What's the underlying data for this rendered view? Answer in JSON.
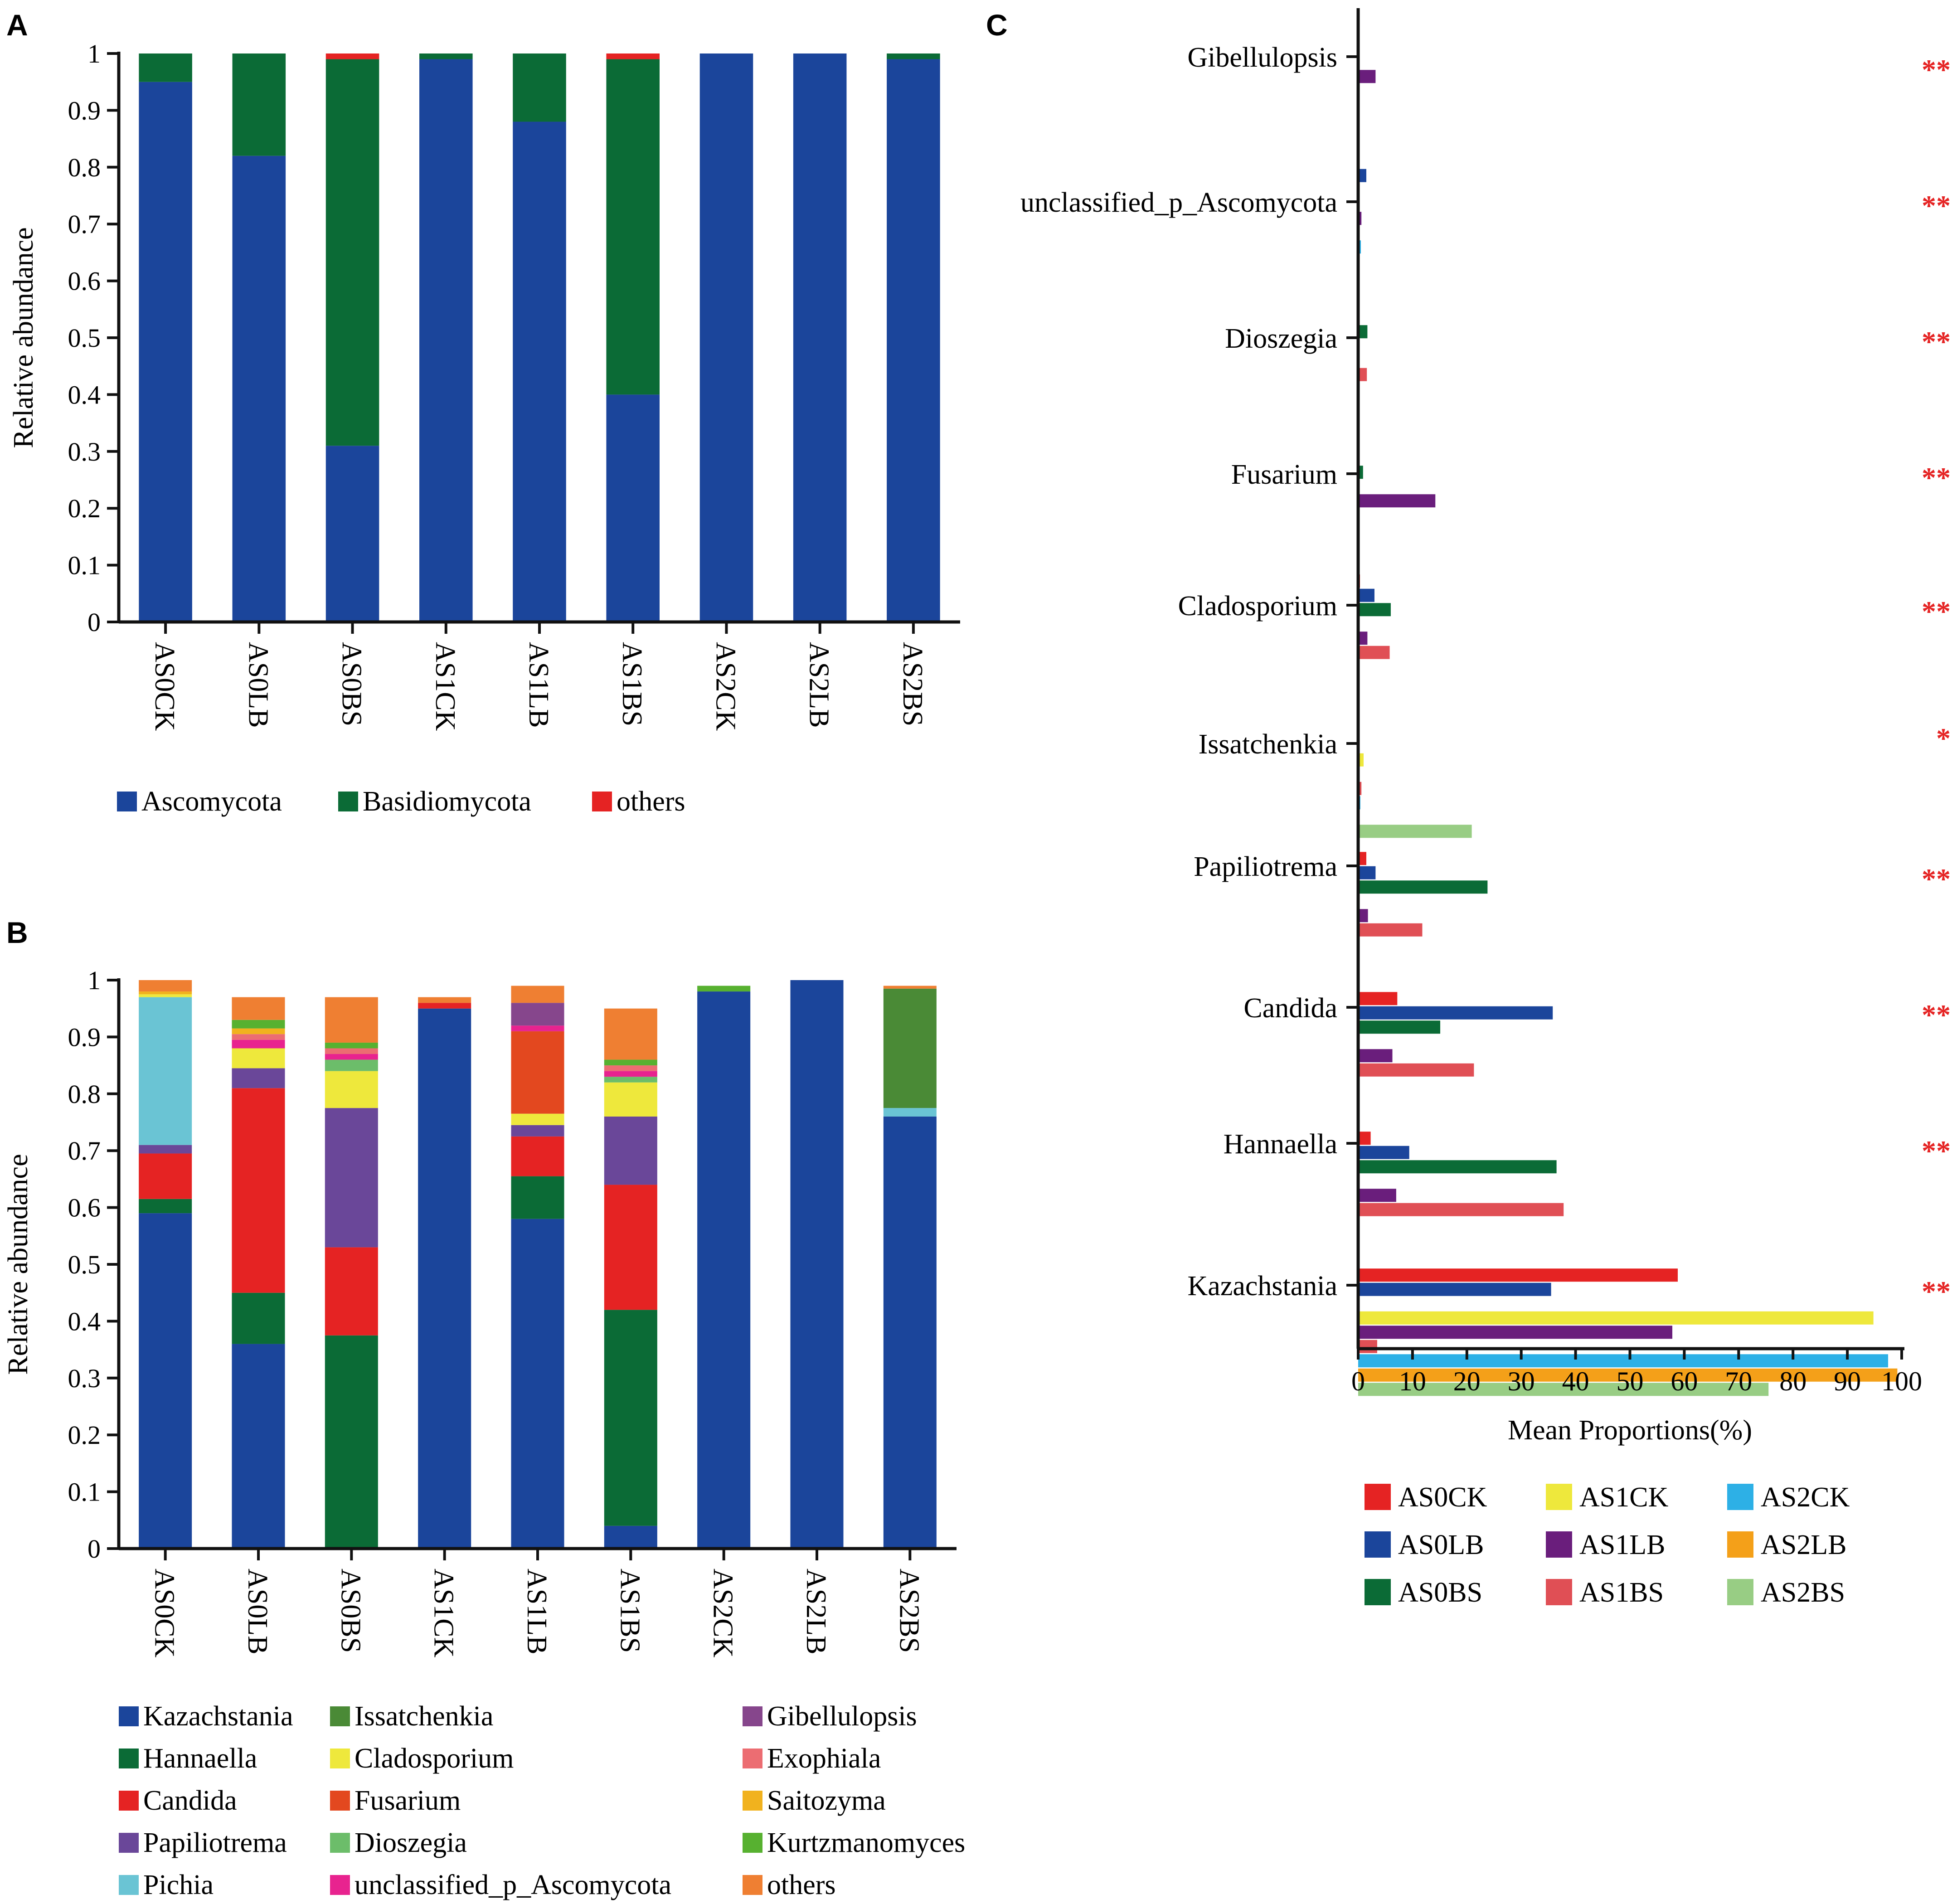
{
  "panels": {
    "A": {
      "label": "A"
    },
    "B": {
      "label": "B"
    },
    "C": {
      "label": "C"
    }
  },
  "chart_data": [
    {
      "id": "A",
      "type": "bar",
      "stacked": true,
      "title": "",
      "xlabel": "",
      "ylabel": "Relative abundance",
      "ylim": [
        0,
        1
      ],
      "yticks": [
        "0",
        "0.1",
        "0.2",
        "0.3",
        "0.4",
        "0.5",
        "0.6",
        "0.7",
        "0.8",
        "0.9",
        "1"
      ],
      "categories": [
        "AS0CK",
        "AS0LB",
        "AS0BS",
        "AS1CK",
        "AS1LB",
        "AS1BS",
        "AS2CK",
        "AS2LB",
        "AS2BS"
      ],
      "legend_position": "bottom",
      "series": [
        {
          "name": "Ascomycota",
          "color": "#1b459b",
          "values": [
            0.95,
            0.82,
            0.31,
            0.99,
            0.88,
            0.4,
            1.0,
            1.0,
            0.99
          ]
        },
        {
          "name": "Basidiomycota",
          "color": "#0b6b36",
          "values": [
            0.05,
            0.18,
            0.68,
            0.01,
            0.12,
            0.59,
            0.0,
            0.0,
            0.01
          ]
        },
        {
          "name": "others",
          "color": "#e52323",
          "values": [
            0.0,
            0.0,
            0.01,
            0.0,
            0.0,
            0.01,
            0.0,
            0.0,
            0.0
          ]
        }
      ]
    },
    {
      "id": "B",
      "type": "bar",
      "stacked": true,
      "title": "",
      "xlabel": "",
      "ylabel": "Relative abundance",
      "ylim": [
        0,
        1
      ],
      "yticks": [
        "0",
        "0.1",
        "0.2",
        "0.3",
        "0.4",
        "0.5",
        "0.6",
        "0.7",
        "0.8",
        "0.9",
        "1"
      ],
      "categories": [
        "AS0CK",
        "AS0LB",
        "AS0BS",
        "AS1CK",
        "AS1LB",
        "AS1BS",
        "AS2CK",
        "AS2LB",
        "AS2BS"
      ],
      "legend_position": "bottom",
      "series": [
        {
          "name": "Kazachstania",
          "color": "#1b459b",
          "values": [
            0.59,
            0.36,
            0.0,
            0.95,
            0.58,
            0.04,
            0.98,
            1.0,
            0.76
          ]
        },
        {
          "name": "Hannaella",
          "color": "#0b6b36",
          "values": [
            0.025,
            0.09,
            0.375,
            0.0,
            0.075,
            0.38,
            0.0,
            0.0,
            0.0
          ]
        },
        {
          "name": "Candida",
          "color": "#e52323",
          "values": [
            0.08,
            0.36,
            0.155,
            0.01,
            0.07,
            0.22,
            0.0,
            0.0,
            0.0
          ]
        },
        {
          "name": "Papiliotrema",
          "color": "#6a4799",
          "values": [
            0.015,
            0.035,
            0.245,
            0.0,
            0.02,
            0.12,
            0.0,
            0.0,
            0.0
          ]
        },
        {
          "name": "Pichia",
          "color": "#6ac4d4",
          "values": [
            0.26,
            0.0,
            0.0,
            0.0,
            0.0,
            0.0,
            0.0,
            0.0,
            0.015
          ]
        },
        {
          "name": "Issatchenkia",
          "color": "#4a8a36",
          "values": [
            0.0,
            0.0,
            0.0,
            0.0,
            0.0,
            0.0,
            0.0,
            0.0,
            0.21
          ]
        },
        {
          "name": "Cladosporium",
          "color": "#eee83c",
          "values": [
            0.005,
            0.035,
            0.065,
            0.0,
            0.02,
            0.06,
            0.0,
            0.0,
            0.0
          ]
        },
        {
          "name": "Fusarium",
          "color": "#e3481f",
          "values": [
            0.0,
            0.0,
            0.0,
            0.0,
            0.145,
            0.0,
            0.0,
            0.0,
            0.0
          ]
        },
        {
          "name": "Dioszegia",
          "color": "#6cbd6a",
          "values": [
            0.0,
            0.0,
            0.02,
            0.0,
            0.0,
            0.01,
            0.0,
            0.0,
            0.0
          ]
        },
        {
          "name": "unclassified_p_Ascomycota",
          "color": "#e8238f",
          "values": [
            0.0,
            0.015,
            0.01,
            0.0,
            0.01,
            0.01,
            0.0,
            0.0,
            0.0
          ]
        },
        {
          "name": "Gibellulopsis",
          "color": "#86468c",
          "values": [
            0.0,
            0.0,
            0.0,
            0.0,
            0.04,
            0.0,
            0.0,
            0.0,
            0.0
          ]
        },
        {
          "name": "Exophiala",
          "color": "#ec6d72",
          "values": [
            0.0,
            0.01,
            0.01,
            0.0,
            0.0,
            0.01,
            0.0,
            0.0,
            0.0
          ]
        },
        {
          "name": "Saitozyma",
          "color": "#f1b21e",
          "values": [
            0.005,
            0.01,
            0.0,
            0.0,
            0.0,
            0.0,
            0.0,
            0.0,
            0.0
          ]
        },
        {
          "name": "Kurtzmanomyces",
          "color": "#57b130",
          "values": [
            0.0,
            0.015,
            0.01,
            0.0,
            0.0,
            0.01,
            0.01,
            0.0,
            0.0
          ]
        },
        {
          "name": "others",
          "color": "#ef7f32",
          "values": [
            0.02,
            0.04,
            0.08,
            0.01,
            0.03,
            0.09,
            0.0,
            0.0,
            0.005
          ]
        }
      ]
    },
    {
      "id": "C",
      "type": "bar",
      "orientation": "horizontal",
      "title": "",
      "xlabel": "Mean Proportions(%)",
      "ylabel": "",
      "xlim": [
        0,
        100
      ],
      "xticks": [
        "0",
        "10",
        "20",
        "30",
        "40",
        "50",
        "60",
        "70",
        "80",
        "90",
        "100"
      ],
      "categories": [
        "Gibellulopsis",
        "unclassified_p_Ascomycota",
        "Dioszegia",
        "Fusarium",
        "Cladosporium",
        "Issatchenkia",
        "Papiliotrema",
        "Candida",
        "Hannaella",
        "Kazachstania"
      ],
      "significance": [
        "**",
        "**",
        "**",
        "**",
        "**",
        "*",
        "**",
        "**",
        "**",
        "**"
      ],
      "legend_position": "bottom",
      "series": [
        {
          "name": "AS0CK",
          "color": "#e52323",
          "values": [
            0,
            0,
            0,
            0,
            0.3,
            0,
            1.5,
            7.2,
            2.3,
            58.8
          ]
        },
        {
          "name": "AS0LB",
          "color": "#1b459b",
          "values": [
            0,
            1.5,
            0,
            0,
            3.0,
            0,
            3.2,
            35.8,
            9.4,
            35.5
          ]
        },
        {
          "name": "AS0BS",
          "color": "#0b6b36",
          "values": [
            0,
            0,
            1.7,
            0.9,
            6.0,
            0,
            23.8,
            15.1,
            36.5,
            0
          ]
        },
        {
          "name": "AS1CK",
          "color": "#eee83c",
          "values": [
            0,
            0,
            0,
            0,
            0,
            1.0,
            0,
            0,
            0,
            94.8
          ]
        },
        {
          "name": "AS1LB",
          "color": "#6a1e7c",
          "values": [
            3.2,
            0.6,
            0,
            14.2,
            1.7,
            0,
            1.8,
            6.3,
            7.0,
            57.8
          ]
        },
        {
          "name": "AS1BS",
          "color": "#e04f55",
          "values": [
            0,
            0,
            1.6,
            0,
            5.8,
            0.6,
            11.8,
            21.3,
            37.8,
            3.5
          ]
        },
        {
          "name": "AS2CK",
          "color": "#2db0e6",
          "values": [
            0,
            0.5,
            0,
            0,
            0,
            0.4,
            0,
            0,
            0,
            97.5
          ]
        },
        {
          "name": "AS2LB",
          "color": "#f4a019",
          "values": [
            0,
            0,
            0,
            0,
            0,
            0,
            0,
            0,
            0,
            99.2
          ]
        },
        {
          "name": "AS2BS",
          "color": "#98cd84",
          "values": [
            0,
            0,
            0,
            0,
            0,
            20.9,
            0,
            0,
            0,
            75.5
          ]
        }
      ]
    }
  ]
}
